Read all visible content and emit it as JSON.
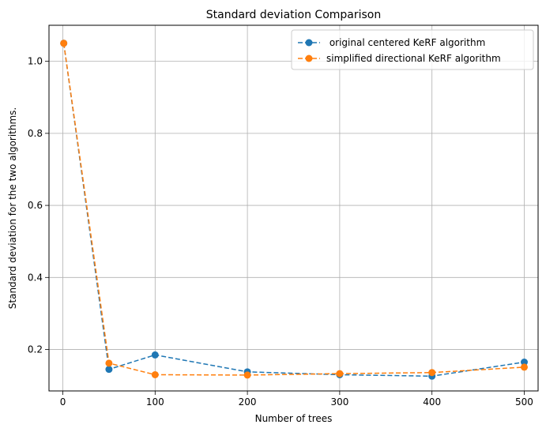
{
  "chart_data": {
    "type": "line",
    "title": "Standard deviation Comparison",
    "xlabel": "Number of trees",
    "ylabel": "Standard deviation for the two algorithms.",
    "xlim": [
      -15,
      515
    ],
    "ylim": [
      0.085,
      1.1
    ],
    "xticks": [
      0,
      100,
      200,
      300,
      400,
      500
    ],
    "yticks": [
      0.2,
      0.4,
      0.6,
      0.8,
      1.0
    ],
    "xtick_labels": [
      "0",
      "100",
      "200",
      "300",
      "400",
      "500"
    ],
    "ytick_labels": [
      "0.2",
      "0.4",
      "0.6",
      "0.8",
      "1.0"
    ],
    "grid": true,
    "legend_position": "top-right",
    "x": [
      1,
      50,
      100,
      200,
      300,
      400,
      500
    ],
    "series": [
      {
        "name": " original centered KeRF algorithm",
        "color": "#1f77b4",
        "values": [
          1.05,
          0.145,
          0.185,
          0.138,
          0.13,
          0.126,
          0.165
        ]
      },
      {
        "name": "simplified directional KeRF algorithm",
        "color": "#ff7f0e",
        "values": [
          1.05,
          0.162,
          0.13,
          0.129,
          0.133,
          0.136,
          0.151
        ]
      }
    ]
  }
}
